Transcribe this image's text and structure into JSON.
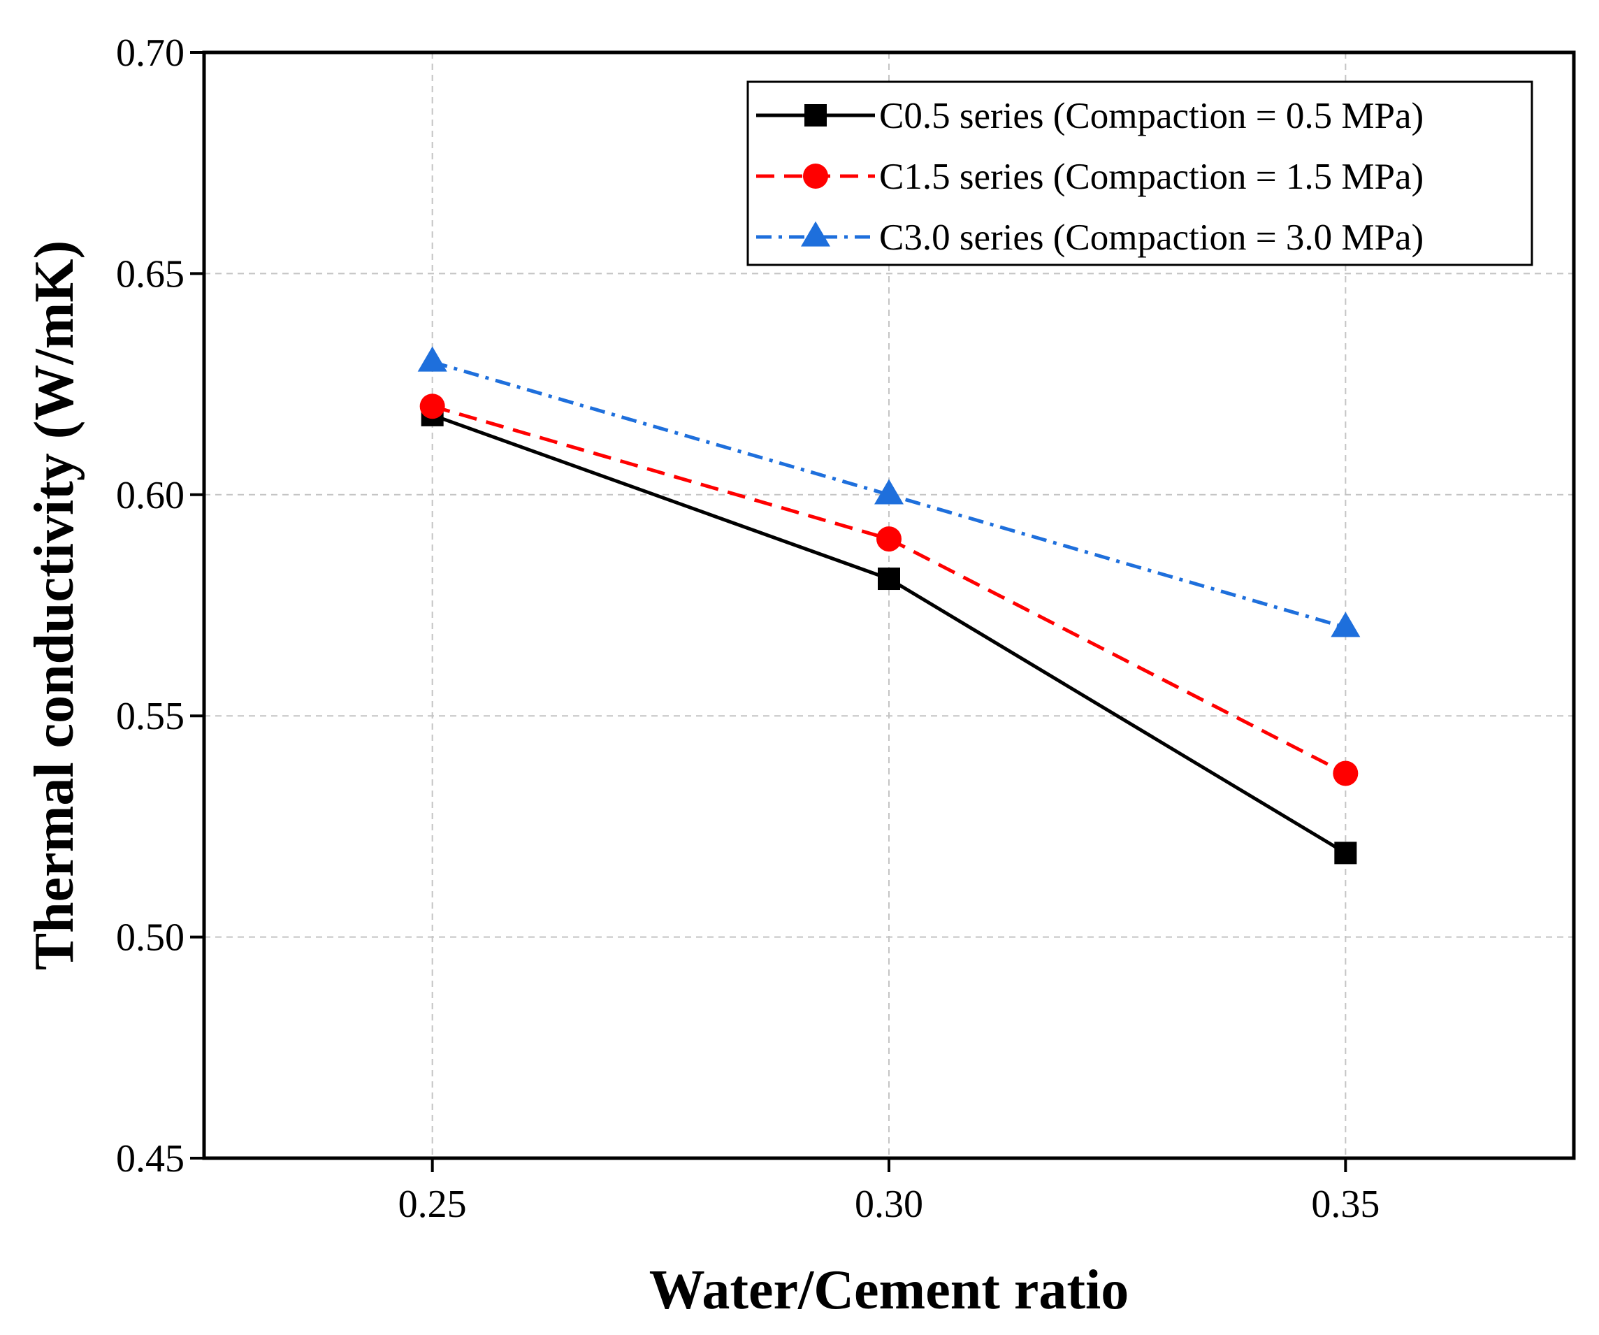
{
  "chart_data": {
    "type": "line",
    "title": "",
    "xlabel": "Water/Cement ratio",
    "ylabel": "Thermal conductivity (W/mK)",
    "x": [
      0.25,
      0.3,
      0.35
    ],
    "x_tick_labels": [
      "0.25",
      "0.30",
      "0.35"
    ],
    "xlim": [
      0.225,
      0.375
    ],
    "ylim": [
      0.45,
      0.7
    ],
    "y_ticks": [
      0.45,
      0.5,
      0.55,
      0.6,
      0.65,
      0.7
    ],
    "y_tick_labels": [
      "0.45",
      "0.50",
      "0.55",
      "0.60",
      "0.65",
      "0.70"
    ],
    "grid": true,
    "legend_position": "top-right",
    "series": [
      {
        "name": "C0.5 series (Compaction = 0.5 MPa)",
        "values": [
          0.618,
          0.581,
          0.519
        ],
        "color": "#000000",
        "marker": "square",
        "line_style": "solid"
      },
      {
        "name": "C1.5 series (Compaction = 1.5 MPa)",
        "values": [
          0.62,
          0.59,
          0.537
        ],
        "color": "#ff0000",
        "marker": "circle",
        "line_style": "dashed"
      },
      {
        "name": "C3.0 series (Compaction = 3.0 MPa)",
        "values": [
          0.63,
          0.6,
          0.57
        ],
        "color": "#1e6fdc",
        "marker": "triangle",
        "line_style": "dash-dot"
      }
    ]
  }
}
